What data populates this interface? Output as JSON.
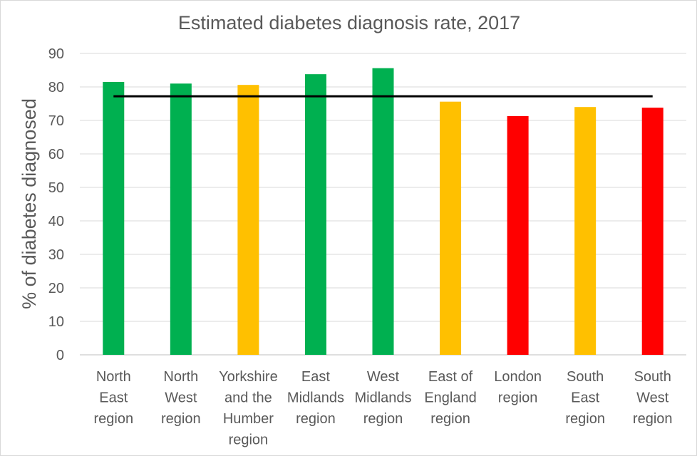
{
  "chart_data": {
    "type": "bar",
    "title": "Estimated diabetes diagnosis rate, 2017",
    "xlabel": "",
    "ylabel": "% of diabetes diagnosed",
    "ylim": [
      0,
      90
    ],
    "yticks": [
      0,
      10,
      20,
      30,
      40,
      50,
      60,
      70,
      80,
      90
    ],
    "grid": true,
    "legend": "none",
    "categories": [
      [
        "North",
        "East",
        "region"
      ],
      [
        "North",
        "West",
        "region"
      ],
      [
        "Yorkshire",
        "and the",
        "Humber",
        "region"
      ],
      [
        "East",
        "Midlands",
        "region"
      ],
      [
        "West",
        "Midlands",
        "region"
      ],
      [
        "East of",
        "England",
        "region"
      ],
      [
        "London",
        "region"
      ],
      [
        "South",
        "East",
        "region"
      ],
      [
        "South",
        "West",
        "region"
      ]
    ],
    "values": [
      81.5,
      81.0,
      80.6,
      83.8,
      85.6,
      75.6,
      71.3,
      74.0,
      73.8
    ],
    "bar_colors": [
      "#00b050",
      "#00b050",
      "#ffc000",
      "#00b050",
      "#00b050",
      "#ffc000",
      "#ff0000",
      "#ffc000",
      "#ff0000"
    ],
    "reference_line": {
      "value": 77.2,
      "color": "#000000"
    }
  }
}
